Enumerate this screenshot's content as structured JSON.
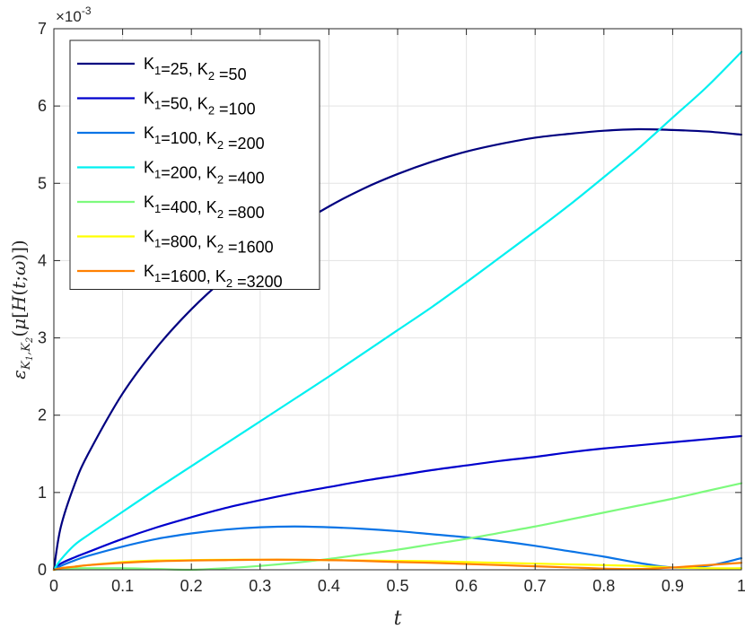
{
  "chart_data": {
    "type": "line",
    "xlabel": "t",
    "ylabel": "ε K1,K2 (μ[H(t;ω)])",
    "xlim": [
      0,
      1
    ],
    "ylim": [
      0,
      7
    ],
    "y_scale_exponent": "×10-3",
    "y_scale_text": "×10",
    "y_scale_power": "-3",
    "xticks": [
      0,
      0.1,
      0.2,
      0.3,
      0.4,
      0.5,
      0.6,
      0.7,
      0.8,
      0.9,
      1
    ],
    "xtick_labels": [
      "0",
      "0.1",
      "0.2",
      "0.3",
      "0.4",
      "0.5",
      "0.6",
      "0.7",
      "0.8",
      "0.9",
      "1"
    ],
    "yticks": [
      0,
      1,
      2,
      3,
      4,
      5,
      6,
      7
    ],
    "ytick_labels": [
      "0",
      "1",
      "2",
      "3",
      "4",
      "5",
      "6",
      "7"
    ],
    "grid": true,
    "legend_position": "top-left",
    "x": [
      0,
      0.01,
      0.03,
      0.05,
      0.1,
      0.15,
      0.2,
      0.25,
      0.3,
      0.35,
      0.4,
      0.45,
      0.5,
      0.55,
      0.6,
      0.65,
      0.7,
      0.75,
      0.8,
      0.85,
      0.9,
      0.95,
      1
    ],
    "series": [
      {
        "name": "K1=25, K2 =50",
        "color": "#000080",
        "values": [
          0,
          0.55,
          1.1,
          1.5,
          2.28,
          2.88,
          3.37,
          3.78,
          4.13,
          4.43,
          4.7,
          4.93,
          5.12,
          5.28,
          5.41,
          5.51,
          5.59,
          5.64,
          5.68,
          5.7,
          5.69,
          5.67,
          5.63
        ]
      },
      {
        "name": "K1=50, K2 =100",
        "color": "#0000cd",
        "values": [
          0,
          0.08,
          0.16,
          0.23,
          0.4,
          0.55,
          0.68,
          0.8,
          0.9,
          0.99,
          1.07,
          1.15,
          1.22,
          1.29,
          1.35,
          1.41,
          1.46,
          1.52,
          1.57,
          1.61,
          1.65,
          1.69,
          1.73
        ]
      },
      {
        "name": "K1=100, K2 =200",
        "color": "#0a74e6",
        "values": [
          0,
          0.05,
          0.12,
          0.18,
          0.3,
          0.4,
          0.47,
          0.52,
          0.55,
          0.56,
          0.55,
          0.53,
          0.5,
          0.46,
          0.42,
          0.37,
          0.31,
          0.24,
          0.17,
          0.09,
          0.03,
          0.05,
          0.15
        ]
      },
      {
        "name": "K1=200, K2 =400",
        "color": "#00f0f0",
        "values": [
          0,
          0.13,
          0.32,
          0.45,
          0.75,
          1.05,
          1.34,
          1.63,
          1.92,
          2.21,
          2.5,
          2.8,
          3.1,
          3.4,
          3.72,
          4.05,
          4.38,
          4.72,
          5.08,
          5.45,
          5.85,
          6.25,
          6.7
        ]
      },
      {
        "name": "K1=400, K2 =800",
        "color": "#7dfa7d",
        "values": [
          0,
          0.01,
          0.02,
          0.02,
          0.02,
          0.01,
          0.0,
          0.02,
          0.05,
          0.09,
          0.14,
          0.2,
          0.26,
          0.33,
          0.4,
          0.48,
          0.56,
          0.65,
          0.74,
          0.83,
          0.92,
          1.02,
          1.12
        ]
      },
      {
        "name": "K1=800, K2 =1600",
        "color": "#ffff00",
        "values": [
          0,
          0.02,
          0.04,
          0.06,
          0.1,
          0.12,
          0.125,
          0.13,
          0.13,
          0.13,
          0.125,
          0.12,
          0.115,
          0.11,
          0.1,
          0.09,
          0.08,
          0.07,
          0.06,
          0.05,
          0.03,
          0.02,
          0.02
        ]
      },
      {
        "name": "K1=1600, K2 =3200",
        "color": "#ff8000",
        "values": [
          0,
          0.02,
          0.04,
          0.06,
          0.09,
          0.11,
          0.12,
          0.125,
          0.13,
          0.13,
          0.125,
          0.115,
          0.1,
          0.09,
          0.075,
          0.06,
          0.045,
          0.03,
          0.015,
          0.01,
          0.03,
          0.06,
          0.09
        ]
      }
    ]
  }
}
